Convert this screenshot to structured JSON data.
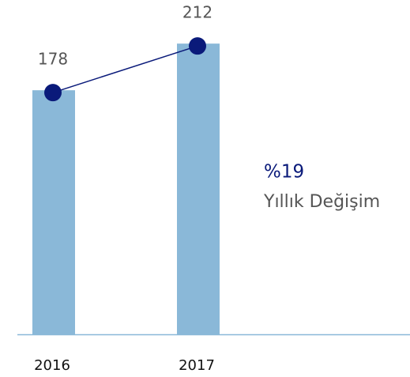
{
  "chart_data": {
    "type": "bar",
    "categories": [
      "2016",
      "2017"
    ],
    "values": [
      178,
      212
    ],
    "color": "#8ab8d8",
    "line_color": "#0a1a7a",
    "annotations": [
      "%19",
      "Yıllık Değişim"
    ]
  }
}
